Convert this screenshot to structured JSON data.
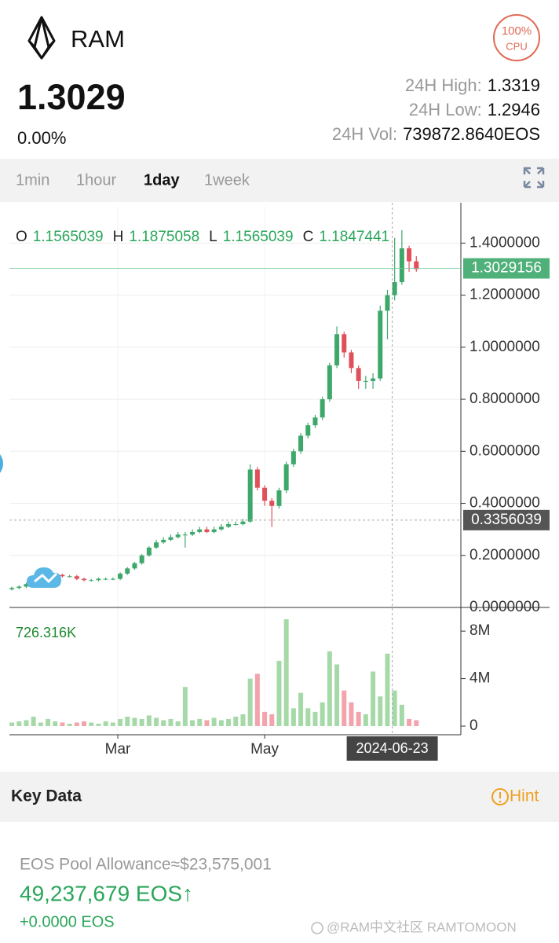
{
  "header": {
    "name": "RAM",
    "cpu_value": "100%",
    "cpu_label": "CPU",
    "price": "1.3029",
    "change": "0.00%",
    "stats": [
      {
        "label": "24H High:",
        "value": "1.3319"
      },
      {
        "label": "24H Low:",
        "value": "1.2946"
      },
      {
        "label": "24H Vol:",
        "value": "739872.8640EOS"
      }
    ]
  },
  "tabs": {
    "items": [
      "1min",
      "1hour",
      "1day",
      "1week"
    ],
    "active": 2
  },
  "chart_data": {
    "type": "candlestick",
    "ohlc_legend": [
      {
        "key": "O",
        "value": 1.1565039
      },
      {
        "key": "H",
        "value": 1.1875058
      },
      {
        "key": "L",
        "value": 1.1565039
      },
      {
        "key": "C",
        "value": 1.1847441
      }
    ],
    "up_color": "#3ea86b",
    "down_color": "#e0505a",
    "volume_up_color": "#a6d9a8",
    "volume_down_color": "#f2a3ab",
    "x": [
      1,
      4,
      7,
      10,
      13,
      16,
      19,
      22,
      25,
      28,
      31,
      34,
      37,
      40,
      43,
      46,
      49,
      52,
      55,
      58,
      61,
      64,
      67,
      70,
      73,
      76,
      79,
      82,
      85,
      88,
      91,
      94,
      97,
      100,
      103,
      106,
      109,
      112,
      115,
      118,
      121,
      124,
      127,
      130,
      133,
      136,
      139,
      142,
      145,
      148,
      151,
      154,
      157,
      160,
      163,
      166,
      169
    ],
    "open": [
      0.07,
      0.075,
      0.08,
      0.09,
      0.1,
      0.11,
      0.12,
      0.125,
      0.12,
      0.12,
      0.11,
      0.105,
      0.105,
      0.11,
      0.11,
      0.11,
      0.13,
      0.15,
      0.17,
      0.2,
      0.23,
      0.25,
      0.26,
      0.27,
      0.28,
      0.28,
      0.29,
      0.3,
      0.29,
      0.3,
      0.31,
      0.32,
      0.32,
      0.33,
      0.53,
      0.46,
      0.41,
      0.39,
      0.45,
      0.55,
      0.6,
      0.66,
      0.7,
      0.73,
      0.8,
      0.93,
      1.05,
      0.98,
      0.92,
      0.87,
      0.87,
      0.88,
      1.14,
      1.2,
      1.25,
      1.38,
      1.33
    ],
    "high": [
      0.08,
      0.085,
      0.095,
      0.105,
      0.115,
      0.125,
      0.13,
      0.13,
      0.125,
      0.125,
      0.115,
      0.11,
      0.115,
      0.115,
      0.115,
      0.135,
      0.155,
      0.175,
      0.205,
      0.235,
      0.26,
      0.27,
      0.28,
      0.29,
      0.29,
      0.3,
      0.31,
      0.31,
      0.31,
      0.32,
      0.33,
      0.33,
      0.34,
      0.55,
      0.54,
      0.47,
      0.42,
      0.46,
      0.56,
      0.61,
      0.67,
      0.71,
      0.74,
      0.81,
      0.94,
      1.08,
      1.06,
      0.99,
      0.93,
      0.89,
      0.9,
      1.16,
      1.22,
      1.42,
      1.45,
      1.39,
      1.35
    ],
    "low": [
      0.065,
      0.07,
      0.075,
      0.085,
      0.095,
      0.105,
      0.115,
      0.115,
      0.115,
      0.105,
      0.1,
      0.1,
      0.1,
      0.105,
      0.105,
      0.105,
      0.125,
      0.145,
      0.165,
      0.195,
      0.225,
      0.245,
      0.255,
      0.265,
      0.23,
      0.275,
      0.285,
      0.285,
      0.285,
      0.295,
      0.305,
      0.315,
      0.315,
      0.325,
      0.45,
      0.39,
      0.31,
      0.38,
      0.44,
      0.54,
      0.59,
      0.65,
      0.69,
      0.72,
      0.79,
      0.92,
      0.96,
      0.9,
      0.84,
      0.84,
      0.84,
      0.87,
      1.03,
      1.18,
      1.24,
      1.29,
      1.29
    ],
    "close": [
      0.075,
      0.08,
      0.09,
      0.1,
      0.11,
      0.12,
      0.125,
      0.12,
      0.12,
      0.11,
      0.105,
      0.105,
      0.11,
      0.11,
      0.11,
      0.13,
      0.15,
      0.17,
      0.2,
      0.23,
      0.25,
      0.26,
      0.27,
      0.28,
      0.28,
      0.29,
      0.3,
      0.29,
      0.3,
      0.31,
      0.32,
      0.32,
      0.33,
      0.53,
      0.46,
      0.41,
      0.39,
      0.45,
      0.55,
      0.6,
      0.66,
      0.7,
      0.73,
      0.8,
      0.93,
      1.05,
      0.98,
      0.92,
      0.87,
      0.87,
      0.88,
      1.14,
      1.2,
      1.25,
      1.38,
      1.33,
      1.3
    ],
    "volume": [
      0.3,
      0.4,
      0.5,
      0.8,
      0.3,
      0.6,
      0.4,
      0.3,
      0.2,
      0.3,
      0.4,
      0.3,
      0.2,
      0.4,
      0.3,
      0.6,
      0.8,
      0.7,
      0.6,
      0.9,
      0.7,
      0.5,
      0.6,
      0.4,
      3.3,
      0.5,
      0.6,
      0.5,
      0.7,
      0.5,
      0.6,
      0.8,
      1.0,
      4.0,
      4.4,
      1.2,
      1.0,
      5.5,
      9.0,
      1.5,
      2.8,
      1.5,
      1.2,
      2.0,
      6.3,
      5.2,
      3.0,
      2.0,
      1.2,
      1.0,
      4.6,
      2.5,
      6.1,
      3.0,
      1.8,
      0.6,
      0.5
    ],
    "volume_label": "726.316K",
    "xlim": [
      0,
      187.5
    ],
    "xticks": [
      {
        "value": 45,
        "label": "Mar"
      },
      {
        "value": 106,
        "label": "May"
      }
    ],
    "ylim": [
      0,
      1.54
    ],
    "yticks": [
      {
        "value": 0,
        "label": "0.0000000"
      },
      {
        "value": 0.2,
        "label": "0.2000000"
      },
      {
        "value": 0.4,
        "label": "0.4000000"
      },
      {
        "value": 0.6,
        "label": "0.6000000"
      },
      {
        "value": 0.8,
        "label": "0.8000000"
      },
      {
        "value": 1.0,
        "label": "1.0000000"
      },
      {
        "value": 1.2,
        "label": "1.2000000"
      },
      {
        "value": 1.4,
        "label": "1.4000000"
      }
    ],
    "y2lim": [
      0,
      9.2
    ],
    "y2ticks": [
      {
        "value": 0,
        "label": "0"
      },
      {
        "value": 4,
        "label": "4M"
      },
      {
        "value": 8,
        "label": "8M"
      }
    ],
    "last_price": 1.3029156,
    "crosshair": {
      "x": {
        "value": 159,
        "label": "2024-06-23"
      },
      "y": 0.3356039
    },
    "grid": true
  },
  "key_data": {
    "title": "Key Data",
    "hint": "Hint",
    "pool_label": "EOS Pool Allowance≈$23,575,001",
    "amount": "49,237,679 EOS↑",
    "change": "+0.0000 EOS"
  },
  "watermark": "@RAM中文社区 RAMTOMOON"
}
